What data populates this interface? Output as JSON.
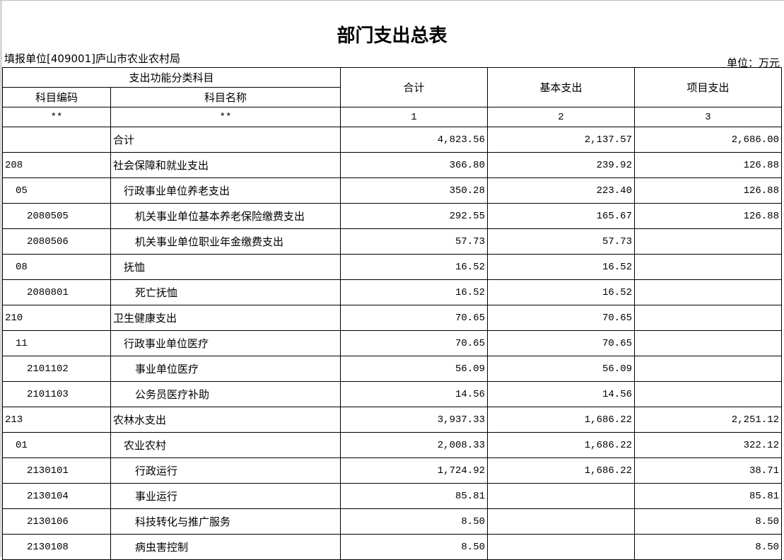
{
  "title": "部门支出总表",
  "filler": "填报单位[409001]庐山市农业农村局",
  "unit": "单位：万元",
  "header": {
    "group": "支出功能分类科目",
    "code": "科目编码",
    "name": "科目名称",
    "total": "合计",
    "basic": "基本支出",
    "project": "项目支出",
    "idx": [
      "**",
      "**",
      "1",
      "2",
      "3"
    ]
  },
  "rows": [
    {
      "code": "",
      "name": "合计",
      "total": "4,823.56",
      "basic": "2,137.57",
      "project": "2,686.00",
      "level": 0
    },
    {
      "code": "208",
      "name": "社会保障和就业支出",
      "total": "366.80",
      "basic": "239.92",
      "project": "126.88",
      "level": 1
    },
    {
      "code": "05",
      "name": "行政事业单位养老支出",
      "total": "350.28",
      "basic": "223.40",
      "project": "126.88",
      "level": 2
    },
    {
      "code": "2080505",
      "name": "机关事业单位基本养老保险缴费支出",
      "total": "292.55",
      "basic": "165.67",
      "project": "126.88",
      "level": 3
    },
    {
      "code": "2080506",
      "name": "机关事业单位职业年金缴费支出",
      "total": "57.73",
      "basic": "57.73",
      "project": "",
      "level": 3
    },
    {
      "code": "08",
      "name": "抚恤",
      "total": "16.52",
      "basic": "16.52",
      "project": "",
      "level": 2
    },
    {
      "code": "2080801",
      "name": "死亡抚恤",
      "total": "16.52",
      "basic": "16.52",
      "project": "",
      "level": 3
    },
    {
      "code": "210",
      "name": "卫生健康支出",
      "total": "70.65",
      "basic": "70.65",
      "project": "",
      "level": 1
    },
    {
      "code": "11",
      "name": "行政事业单位医疗",
      "total": "70.65",
      "basic": "70.65",
      "project": "",
      "level": 2
    },
    {
      "code": "2101102",
      "name": "事业单位医疗",
      "total": "56.09",
      "basic": "56.09",
      "project": "",
      "level": 3
    },
    {
      "code": "2101103",
      "name": "公务员医疗补助",
      "total": "14.56",
      "basic": "14.56",
      "project": "",
      "level": 3
    },
    {
      "code": "213",
      "name": "农林水支出",
      "total": "3,937.33",
      "basic": "1,686.22",
      "project": "2,251.12",
      "level": 1
    },
    {
      "code": "01",
      "name": "农业农村",
      "total": "2,008.33",
      "basic": "1,686.22",
      "project": "322.12",
      "level": 2
    },
    {
      "code": "2130101",
      "name": "行政运行",
      "total": "1,724.92",
      "basic": "1,686.22",
      "project": "38.71",
      "level": 3
    },
    {
      "code": "2130104",
      "name": "事业运行",
      "total": "85.81",
      "basic": "",
      "project": "85.81",
      "level": 3
    },
    {
      "code": "2130106",
      "name": "科技转化与推广服务",
      "total": "8.50",
      "basic": "",
      "project": "8.50",
      "level": 3
    },
    {
      "code": "2130108",
      "name": "病虫害控制",
      "total": "8.50",
      "basic": "",
      "project": "8.50",
      "level": 3
    }
  ]
}
